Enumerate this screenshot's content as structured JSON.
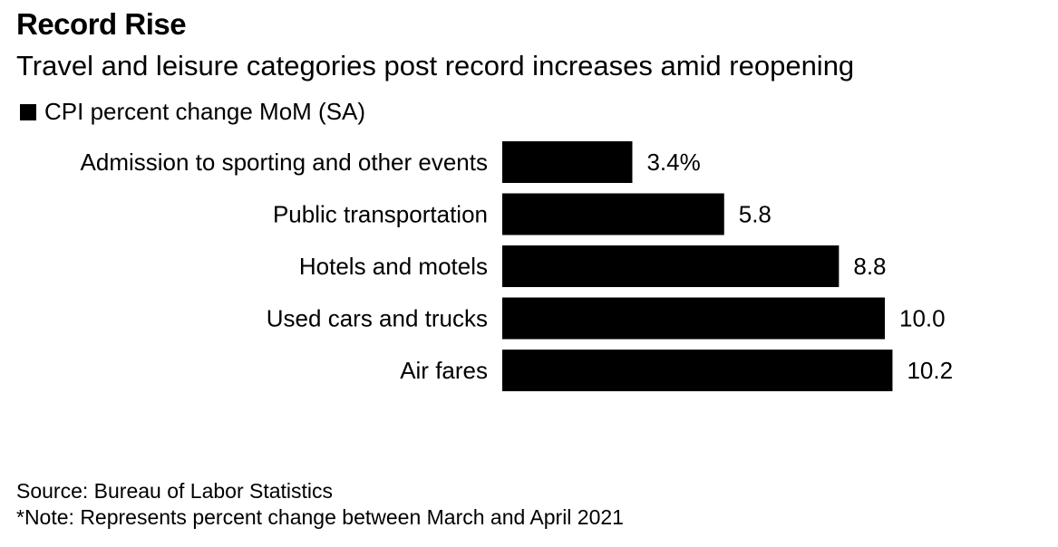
{
  "header": {
    "title": "Record Rise",
    "subtitle": "Travel and leisure categories post record increases amid reopening"
  },
  "legend": {
    "label": "CPI percent change MoM (SA)",
    "color": "#000000"
  },
  "chart_data": {
    "type": "bar",
    "orientation": "horizontal",
    "categories": [
      "Admission to sporting and other events",
      "Public transportation",
      "Hotels and motels",
      "Used cars and trucks",
      "Air fares"
    ],
    "values": [
      3.4,
      5.8,
      8.8,
      10.0,
      10.2
    ],
    "value_labels": [
      "3.4%",
      "5.8",
      "8.8",
      "10.0",
      "10.2"
    ],
    "series": [
      {
        "name": "CPI percent change MoM (SA)",
        "values": [
          3.4,
          5.8,
          8.8,
          10.0,
          10.2
        ]
      }
    ],
    "title": "Record Rise",
    "subtitle": "Travel and leisure categories post record increases amid reopening",
    "bar_color": "#000000",
    "grid": false,
    "legend_position": "top-left"
  },
  "footer": {
    "source": "Source: Bureau of Labor Statistics",
    "note": "*Note: Represents percent change between March and April 2021"
  }
}
